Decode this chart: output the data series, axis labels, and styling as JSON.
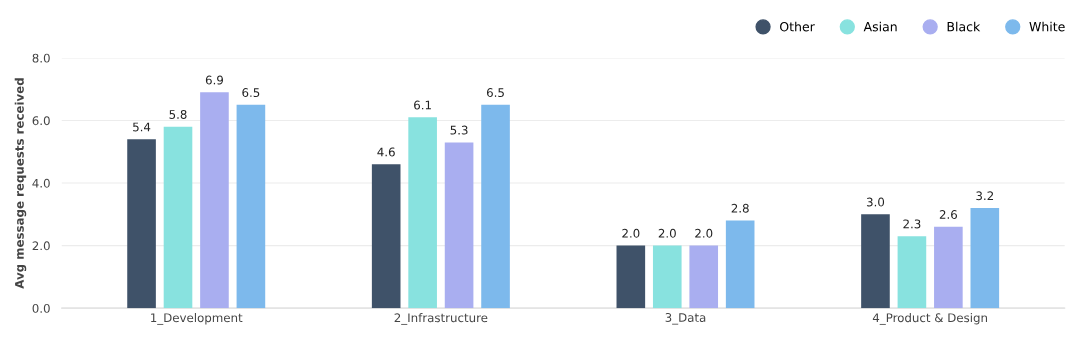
{
  "chart_data": {
    "type": "bar",
    "ylabel": "Avg message requests received",
    "categories": [
      "1_Development",
      "2_Infrastructure",
      "3_Data",
      "4_Product & Design"
    ],
    "series": [
      {
        "name": "Other",
        "color": "#3f5269",
        "values": [
          5.4,
          4.6,
          2.0,
          3.0
        ],
        "value_labels": [
          "5.4",
          "4.6",
          "2.0",
          "3.0"
        ]
      },
      {
        "name": "Asian",
        "color": "#88e2df",
        "values": [
          5.8,
          6.1,
          2.0,
          2.3
        ],
        "value_labels": [
          "5.8",
          "6.1",
          "2.0",
          "2.3"
        ]
      },
      {
        "name": "Black",
        "color": "#a9aef0",
        "values": [
          6.9,
          5.3,
          2.0,
          2.6
        ],
        "value_labels": [
          "6.9",
          "5.3",
          "2.0",
          "2.6"
        ]
      },
      {
        "name": "White",
        "color": "#7db9ec",
        "values": [
          6.5,
          6.5,
          2.8,
          3.2
        ],
        "value_labels": [
          "6.5",
          "6.5",
          "2.8",
          "3.2"
        ]
      }
    ],
    "ylim": [
      0,
      8
    ],
    "yticks": [
      {
        "value": 0,
        "label": "0.0"
      },
      {
        "value": 2,
        "label": "2.0"
      },
      {
        "value": 4,
        "label": "4.0"
      },
      {
        "value": 6,
        "label": "6.0"
      },
      {
        "value": 8,
        "label": "8.0"
      }
    ],
    "grid": "y",
    "legend": "top right",
    "marker": "circle"
  }
}
